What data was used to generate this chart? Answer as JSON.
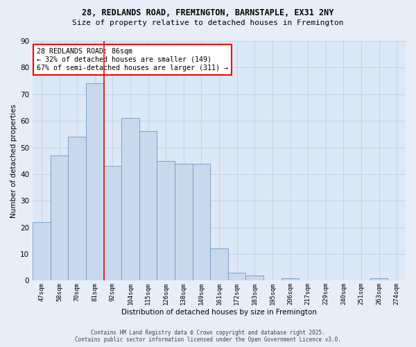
{
  "title_line1": "28, REDLANDS ROAD, FREMINGTON, BARNSTAPLE, EX31 2NY",
  "title_line2": "Size of property relative to detached houses in Fremington",
  "xlabel": "Distribution of detached houses by size in Fremington",
  "ylabel": "Number of detached properties",
  "bar_labels": [
    "47sqm",
    "58sqm",
    "70sqm",
    "81sqm",
    "92sqm",
    "104sqm",
    "115sqm",
    "126sqm",
    "138sqm",
    "149sqm",
    "161sqm",
    "172sqm",
    "183sqm",
    "195sqm",
    "206sqm",
    "217sqm",
    "229sqm",
    "240sqm",
    "251sqm",
    "263sqm",
    "274sqm"
  ],
  "bar_values": [
    22,
    47,
    54,
    74,
    43,
    61,
    56,
    45,
    44,
    44,
    12,
    3,
    2,
    0,
    1,
    0,
    0,
    0,
    0,
    1,
    0
  ],
  "bar_color": "#c9d9ed",
  "bar_edgecolor": "#7096c0",
  "grid_color": "#c0cfe0",
  "bg_color": "#dce8f5",
  "fig_color": "#e8eef8",
  "annotation_text": "28 REDLANDS ROAD: 86sqm\n← 32% of detached houses are smaller (149)\n67% of semi-detached houses are larger (311) →",
  "redline_x": 3.5,
  "ylim": [
    0,
    90
  ],
  "yticks": [
    0,
    10,
    20,
    30,
    40,
    50,
    60,
    70,
    80,
    90
  ],
  "footer_line1": "Contains HM Land Registry data © Crown copyright and database right 2025.",
  "footer_line2": "Contains public sector information licensed under the Open Government Licence v3.0."
}
